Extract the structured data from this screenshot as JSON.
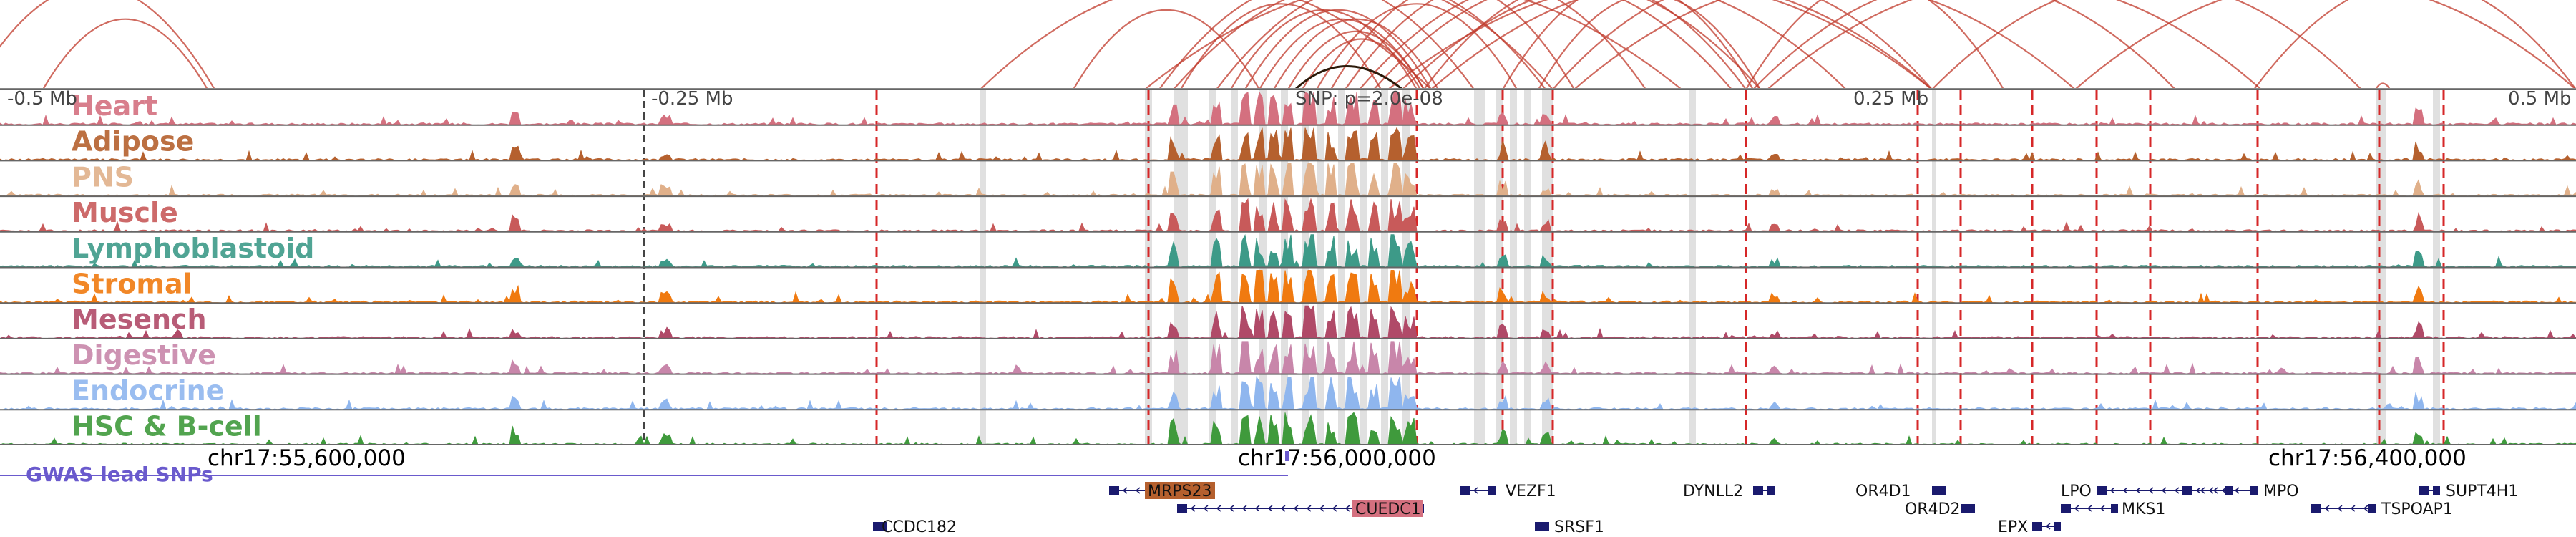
{
  "ruler": {
    "left_label": "-0.5 Mb",
    "mid_left_label": "-0.25 Mb",
    "snp_label": "SNP: p=2.0e-08",
    "mid_right_label": "0.25 Mb",
    "right_label": "0.5 Mb"
  },
  "tracks": [
    {
      "name": "Heart",
      "color": "#d4707f"
    },
    {
      "name": "Adipose",
      "color": "#b5602e"
    },
    {
      "name": "PNS",
      "color": "#e0b08a"
    },
    {
      "name": "Muscle",
      "color": "#c85a5a"
    },
    {
      "name": "Lymphoblastoid",
      "color": "#3d9a88"
    },
    {
      "name": "Stromal",
      "color": "#f07a10"
    },
    {
      "name": "Mesench",
      "color": "#b04a68"
    },
    {
      "name": "Digestive",
      "color": "#c886aa"
    },
    {
      "name": "Endocrine",
      "color": "#8fb6ee"
    },
    {
      "name": "HSC & B-cell",
      "color": "#3f9a3c"
    }
  ],
  "gwas": {
    "label": "GWAS lead SNPs",
    "color": "#6a5acd"
  },
  "coordinates": [
    "chr17:55,600,000",
    "chr17:56,000,000",
    "chr17:56,400,000"
  ],
  "genes": [
    {
      "name": "MRPS23",
      "highlight": true,
      "highlight_color": "#b5602e"
    },
    {
      "name": "CUEDC1",
      "highlight": true,
      "highlight_color": "#d4707f"
    },
    {
      "name": "VEZF1",
      "highlight": false
    },
    {
      "name": "SRSF1",
      "highlight": false
    },
    {
      "name": "CCDC182",
      "highlight": false
    },
    {
      "name": "DYNLL2",
      "highlight": false
    },
    {
      "name": "OR4D1",
      "highlight": false
    },
    {
      "name": "OR4D2",
      "highlight": false
    },
    {
      "name": "LPO",
      "highlight": false
    },
    {
      "name": "EPX",
      "highlight": false
    },
    {
      "name": "MKS1",
      "highlight": false
    },
    {
      "name": "MPO",
      "highlight": false
    },
    {
      "name": "SUPT4H1",
      "highlight": false
    },
    {
      "name": "TSPOAP1",
      "highlight": false
    }
  ],
  "colors": {
    "arc": "#c0392b",
    "highlight_arc": "#2b1a0a",
    "dashed_marker": "#d62728",
    "grey_band": "#d3d3d3",
    "gene_body": "#1a1a6e"
  }
}
